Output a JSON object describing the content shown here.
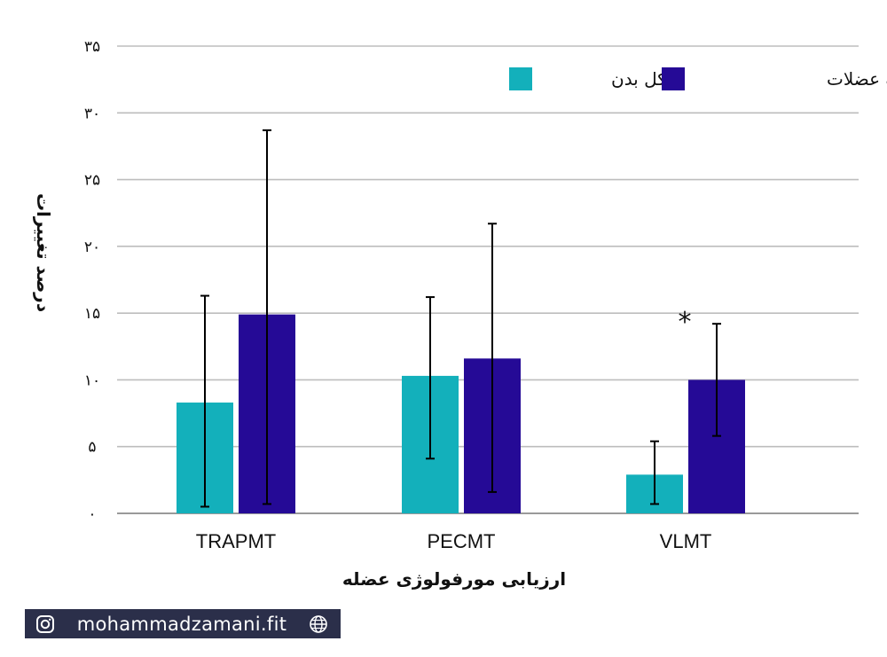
{
  "chart_data": {
    "type": "bar",
    "categories": [
      "TRAPMT",
      "PECMT",
      "VLMT"
    ],
    "series": [
      {
        "name": "کل بدن",
        "color": "#13b0bb",
        "values": [
          8.3,
          10.3,
          2.9
        ],
        "err_low": [
          0.5,
          4.1,
          0.7
        ],
        "err_high": [
          16.3,
          16.2,
          5.4
        ]
      },
      {
        "name": "تفکیک عضلات",
        "color": "#250a96",
        "values": [
          14.9,
          11.6,
          10.0
        ],
        "err_low": [
          0.7,
          1.6,
          5.8
        ],
        "err_high": [
          28.7,
          21.7,
          14.2
        ]
      }
    ],
    "ylim": [
      0,
      35
    ],
    "yticks": [
      0,
      5,
      10,
      15,
      20,
      25,
      30,
      35
    ],
    "ytick_labels": [
      "۰",
      "۵",
      "۱۰",
      "۱۵",
      "۲۰",
      "۲۵",
      "۳۰",
      "۳۵"
    ],
    "ylabel": "درصد تغییرات",
    "xlabel": "ارزیابی مورفولوژی عضله",
    "annotation": {
      "text": "*",
      "category": "VLMT",
      "y": 15
    },
    "grid": true,
    "legend_position": "top-right"
  },
  "footer": {
    "handle": "mohammadzamani.fit",
    "left_icon": "instagram-icon",
    "right_icon": "globe-icon"
  }
}
